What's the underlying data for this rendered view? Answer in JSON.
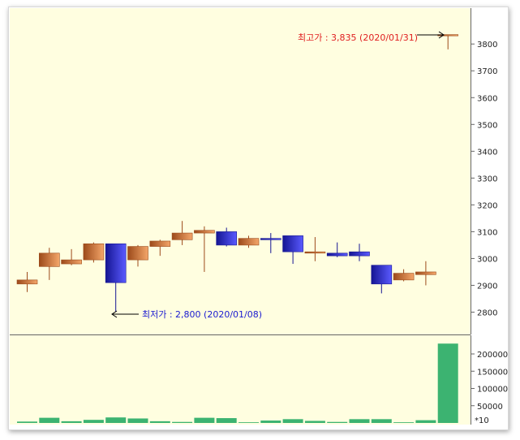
{
  "chart_data": {
    "type": "candlestick",
    "price_axis": {
      "ticks": [
        2800,
        2900,
        3000,
        3100,
        3200,
        3300,
        3400,
        3500,
        3600,
        3700,
        3800
      ]
    },
    "volume_axis": {
      "ticks": [
        "200000",
        "150000",
        "100000",
        "50000"
      ],
      "unit_label": "*10"
    },
    "candles": [
      {
        "open": 2905,
        "high": 2950,
        "low": 2875,
        "close": 2920,
        "volume": 4000
      },
      {
        "open": 2970,
        "high": 3040,
        "low": 2920,
        "close": 3020,
        "volume": 15000
      },
      {
        "open": 2980,
        "high": 3035,
        "low": 2975,
        "close": 2995,
        "volume": 5000
      },
      {
        "open": 2995,
        "high": 3060,
        "low": 2985,
        "close": 3055,
        "volume": 9000
      },
      {
        "open": 3055,
        "high": 3055,
        "low": 2800,
        "close": 2910,
        "volume": 16000
      },
      {
        "open": 2995,
        "high": 3050,
        "low": 2970,
        "close": 3045,
        "volume": 13000
      },
      {
        "open": 3045,
        "high": 3070,
        "low": 3010,
        "close": 3065,
        "volume": 5000
      },
      {
        "open": 3070,
        "high": 3140,
        "low": 3050,
        "close": 3095,
        "volume": 3000
      },
      {
        "open": 3095,
        "high": 3120,
        "low": 2950,
        "close": 3105,
        "volume": 15000
      },
      {
        "open": 3100,
        "high": 3115,
        "low": 3045,
        "close": 3050,
        "volume": 14000
      },
      {
        "open": 3050,
        "high": 3085,
        "low": 3040,
        "close": 3075,
        "volume": 2000
      },
      {
        "open": 3075,
        "high": 3095,
        "low": 3020,
        "close": 3070,
        "volume": 7000
      },
      {
        "open": 3085,
        "high": 3085,
        "low": 2980,
        "close": 3025,
        "volume": 11000
      },
      {
        "open": 3020,
        "high": 3080,
        "low": 2990,
        "close": 3025,
        "volume": 6000
      },
      {
        "open": 3020,
        "high": 3060,
        "low": 3005,
        "close": 3010,
        "volume": 3000
      },
      {
        "open": 3025,
        "high": 3055,
        "low": 2990,
        "close": 3010,
        "volume": 11000
      },
      {
        "open": 2975,
        "high": 2975,
        "low": 2870,
        "close": 2905,
        "volume": 11000
      },
      {
        "open": 2920,
        "high": 2960,
        "low": 2915,
        "close": 2945,
        "volume": 2000
      },
      {
        "open": 2940,
        "high": 2990,
        "low": 2900,
        "close": 2950,
        "volume": 8000
      },
      {
        "open": 3835,
        "high": 3835,
        "low": 3780,
        "close": 3835,
        "volume": 230000
      }
    ],
    "high_annotation": "최고가 : 3,835 (2020/01/31)",
    "low_annotation": "최저가 : 2,800 (2020/01/08)",
    "colors": {
      "background": "#fffee0",
      "up_light": "#f4a66a",
      "up_dark": "#9c4a1a",
      "down_light": "#5a5aff",
      "down_dark": "#151593",
      "volume": "#3cb371",
      "high_text": "#e02020",
      "low_text": "#1a1ad0"
    }
  }
}
